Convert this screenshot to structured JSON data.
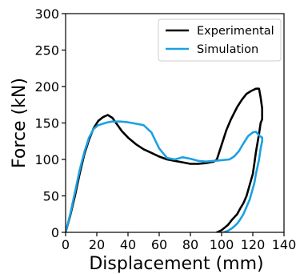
{
  "chart_data": {
    "type": "line",
    "xlabel": "Displacement (mm)",
    "ylabel": "Force (kN)",
    "xlim": [
      0,
      140
    ],
    "ylim": [
      0,
      300
    ],
    "xticks": [
      0,
      20,
      40,
      60,
      80,
      100,
      120,
      140
    ],
    "yticks": [
      0,
      50,
      100,
      150,
      200,
      250,
      300
    ],
    "grid": false,
    "legend_position": "top-right",
    "series": [
      {
        "name": "Experimental",
        "color": "#000000",
        "x": [
          0,
          3,
          6,
          9,
          12,
          15,
          18,
          21,
          24,
          27,
          30,
          33,
          36,
          40,
          45,
          50,
          55,
          60,
          65,
          70,
          75,
          80,
          85,
          90,
          95,
          97,
          100,
          103,
          106,
          110,
          113,
          116,
          119,
          122,
          124,
          125,
          126,
          126,
          125,
          124,
          122,
          121,
          120,
          118,
          116,
          114,
          112,
          110,
          107,
          104,
          100,
          97
        ],
        "y": [
          0,
          23,
          50,
          80,
          107,
          127,
          143,
          153,
          158,
          161,
          157,
          148,
          139,
          130,
          121,
          114,
          109,
          104,
          100,
          98,
          96,
          94,
          94,
          95,
          97,
          100,
          120,
          140,
          155,
          172,
          182,
          190,
          194,
          197,
          197,
          185,
          170,
          155,
          150,
          135,
          110,
          95,
          80,
          65,
          50,
          40,
          33,
          25,
          18,
          10,
          3,
          0
        ]
      },
      {
        "name": "Simulation",
        "color": "#1ba1e2",
        "x": [
          0,
          3,
          6,
          9,
          12,
          15,
          18,
          21,
          24,
          27,
          30,
          35,
          40,
          45,
          50,
          55,
          60,
          65,
          70,
          75,
          80,
          85,
          90,
          95,
          100,
          105,
          108,
          111,
          114,
          117,
          120,
          122,
          124,
          126,
          126,
          125,
          124,
          123,
          122,
          121,
          120,
          118,
          116,
          114,
          112,
          110,
          107,
          104,
          101
        ],
        "y": [
          0,
          25,
          55,
          85,
          110,
          130,
          142,
          147,
          149,
          151,
          152,
          152,
          151,
          149,
          147,
          137,
          115,
          102,
          100,
          103,
          101,
          98,
          97,
          98,
          99,
          100,
          104,
          111,
          122,
          132,
          137,
          138,
          133,
          130,
          125,
          115,
          100,
          90,
          80,
          68,
          60,
          45,
          35,
          25,
          18,
          12,
          6,
          2,
          0
        ]
      }
    ]
  }
}
